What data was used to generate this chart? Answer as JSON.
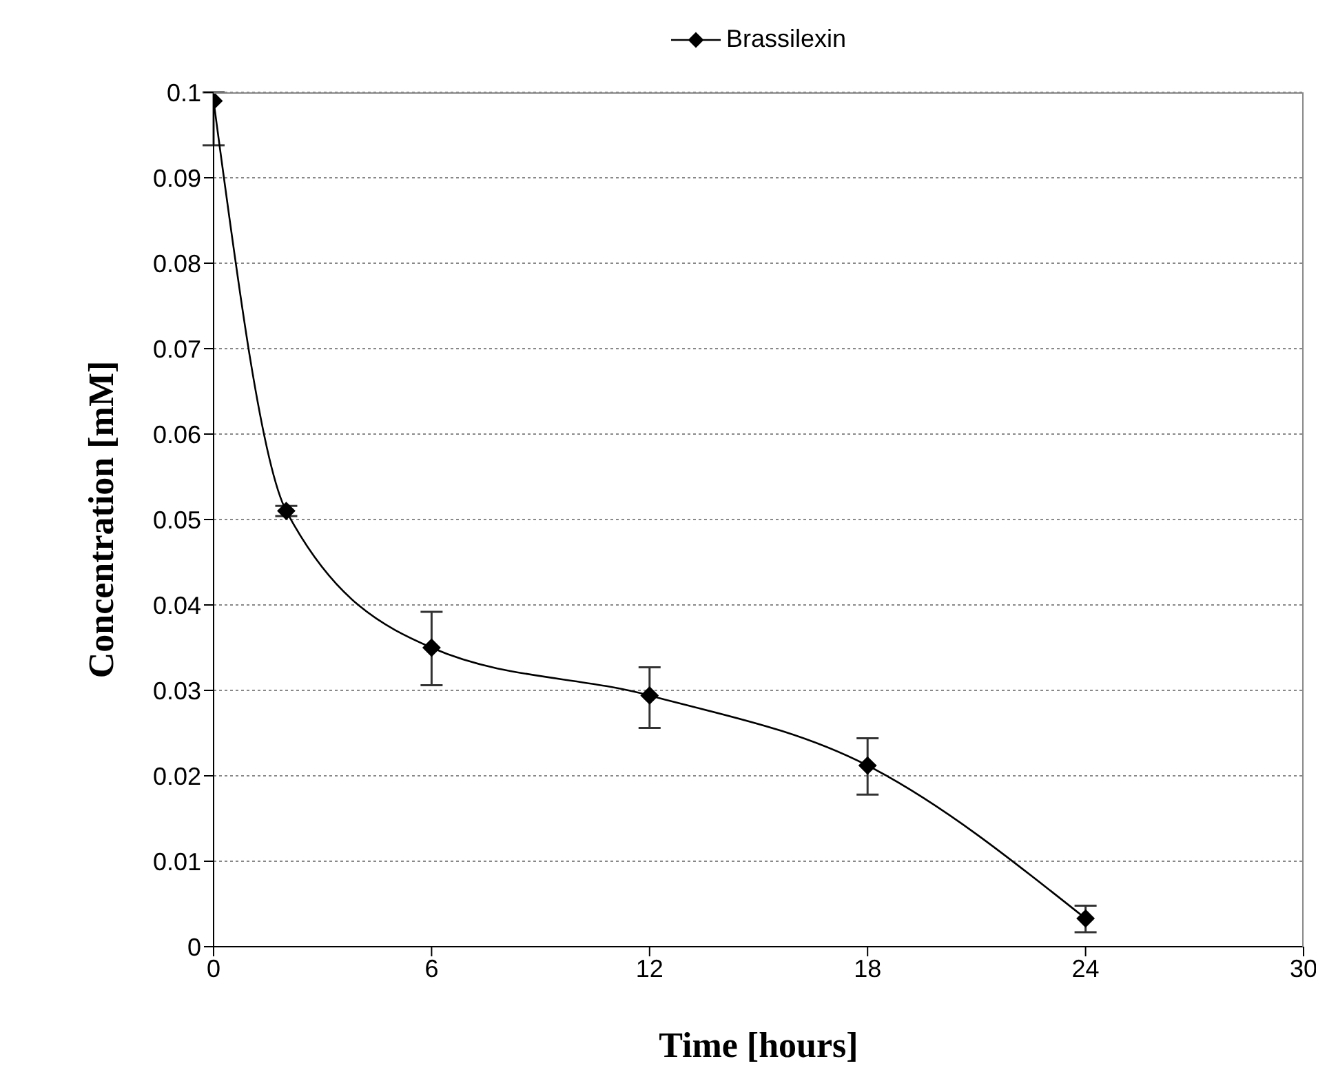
{
  "chart_data": {
    "type": "line",
    "xlabel": "Time [hours]",
    "ylabel": "Concentration [mM]",
    "x": [
      0,
      2,
      6,
      12,
      18,
      24
    ],
    "series": [
      {
        "name": "Brassilexin",
        "color": "#000000",
        "values": [
          0.099,
          0.051,
          0.035,
          0.0294,
          0.0212,
          0.0033
        ],
        "errors": [
          [
            0.0938,
            0.1
          ],
          [
            0.0504,
            0.0516
          ],
          [
            0.0306,
            0.0392
          ],
          [
            0.0256,
            0.0327
          ],
          [
            0.0178,
            0.0244
          ],
          [
            0.0017,
            0.0048
          ]
        ]
      }
    ],
    "xlim": [
      0,
      30
    ],
    "xticks": [
      0,
      6,
      12,
      18,
      24,
      30
    ],
    "ylim": [
      0,
      0.1
    ],
    "yticks": [
      0,
      0.01,
      0.02,
      0.03,
      0.04,
      0.05,
      0.06,
      0.07,
      0.08,
      0.09,
      0.1
    ],
    "grid": "y",
    "legend": "top",
    "marker": "diamond",
    "line_style": "solid"
  }
}
